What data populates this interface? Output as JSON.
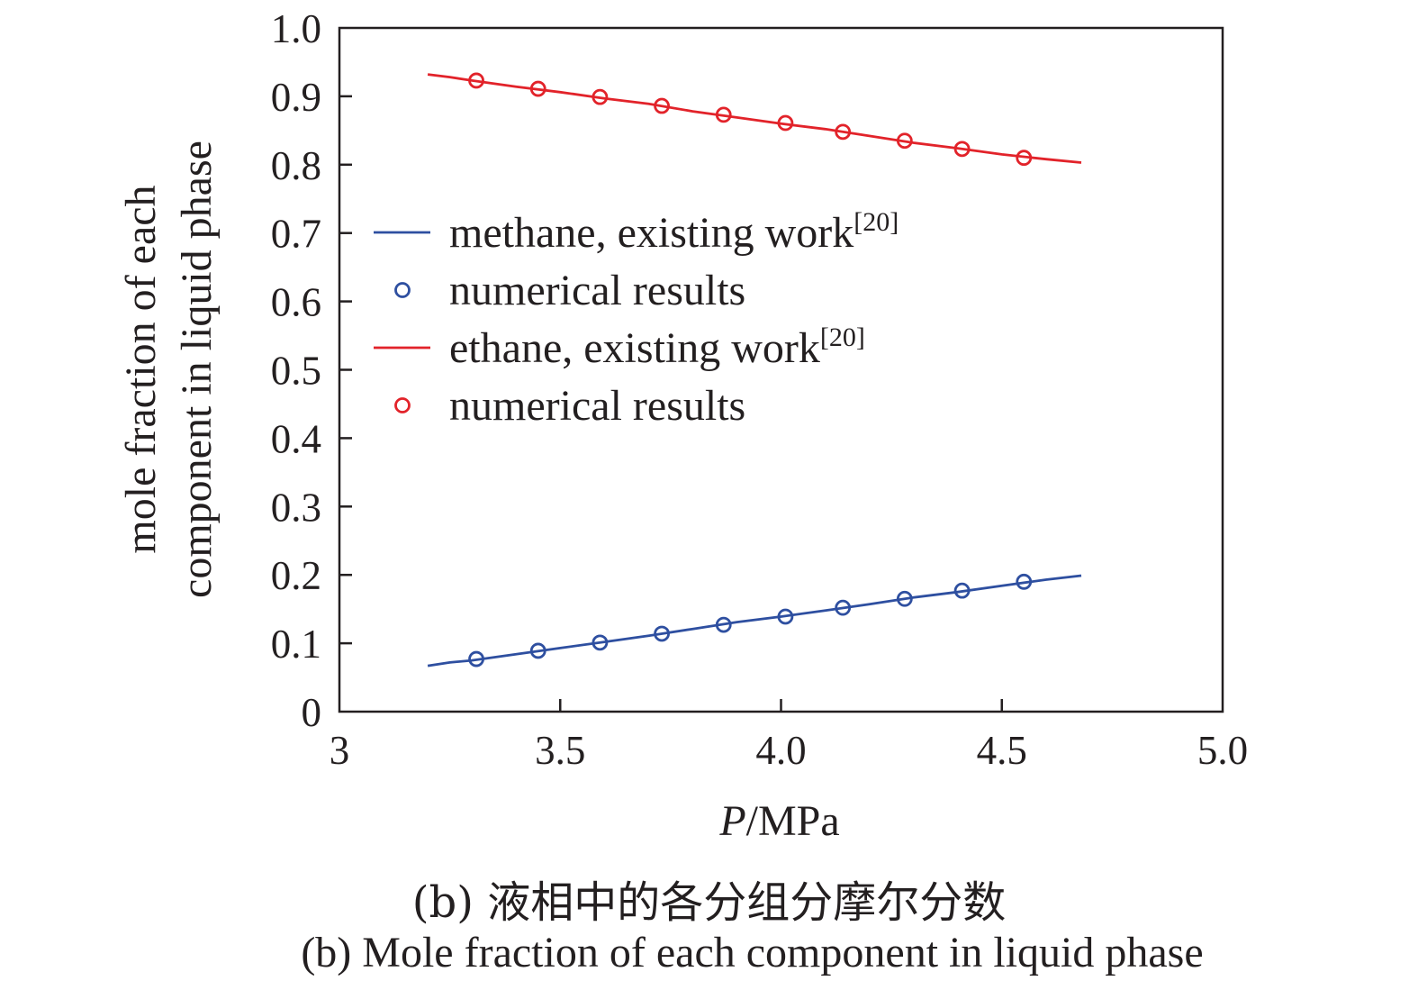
{
  "chart_data": {
    "type": "line",
    "xlabel_italic": "P",
    "xlabel_unit": "/MPa",
    "ylabel_line1": "mole fraction of each",
    "ylabel_line2": "component in liquid phase",
    "xlim": [
      3.0,
      5.0
    ],
    "ylim": [
      0.0,
      1.0
    ],
    "x_ticks": [
      {
        "value": 3.0,
        "label": "3"
      },
      {
        "value": 3.5,
        "label": "3.5"
      },
      {
        "value": 4.0,
        "label": "4.0"
      },
      {
        "value": 4.5,
        "label": "4.5"
      },
      {
        "value": 5.0,
        "label": "5.0"
      }
    ],
    "y_ticks": [
      {
        "value": 0.0,
        "label": "0"
      },
      {
        "value": 0.1,
        "label": "0.1"
      },
      {
        "value": 0.2,
        "label": "0.2"
      },
      {
        "value": 0.3,
        "label": "0.3"
      },
      {
        "value": 0.4,
        "label": "0.4"
      },
      {
        "value": 0.5,
        "label": "0.5"
      },
      {
        "value": 0.6,
        "label": "0.6"
      },
      {
        "value": 0.7,
        "label": "0.7"
      },
      {
        "value": 0.8,
        "label": "0.8"
      },
      {
        "value": 0.9,
        "label": "0.9"
      },
      {
        "value": 1.0,
        "label": "1.0"
      }
    ],
    "grid": false,
    "legend_position": "middle-left",
    "series": [
      {
        "name": "methane, existing work",
        "name_sup": "[20]",
        "kind": "line",
        "color": "#2e4fa0",
        "x": [
          3.2,
          3.25,
          3.3,
          3.4,
          3.5,
          3.6,
          3.7,
          3.8,
          3.9,
          4.0,
          4.1,
          4.2,
          4.3,
          4.4,
          4.5,
          4.6,
          4.68
        ],
        "y": [
          0.067,
          0.072,
          0.075,
          0.084,
          0.093,
          0.102,
          0.111,
          0.121,
          0.131,
          0.139,
          0.148,
          0.157,
          0.167,
          0.175,
          0.184,
          0.193,
          0.199
        ]
      },
      {
        "name": "numerical results",
        "kind": "markers",
        "color": "#2e4fa0",
        "x": [
          3.31,
          3.45,
          3.59,
          3.73,
          3.87,
          4.01,
          4.14,
          4.28,
          4.41,
          4.55
        ],
        "y": [
          0.077,
          0.089,
          0.101,
          0.114,
          0.127,
          0.139,
          0.152,
          0.165,
          0.177,
          0.19
        ]
      },
      {
        "name": "ethane, existing work",
        "name_sup": "[20]",
        "kind": "line",
        "color": "#e2232a",
        "x": [
          3.2,
          3.25,
          3.3,
          3.4,
          3.5,
          3.6,
          3.7,
          3.8,
          3.9,
          4.0,
          4.1,
          4.2,
          4.3,
          4.4,
          4.5,
          4.6,
          4.68
        ],
        "y": [
          0.932,
          0.928,
          0.923,
          0.914,
          0.906,
          0.897,
          0.889,
          0.878,
          0.869,
          0.86,
          0.852,
          0.842,
          0.832,
          0.824,
          0.815,
          0.808,
          0.803
        ]
      },
      {
        "name": "numerical results",
        "kind": "markers",
        "color": "#e2232a",
        "x": [
          3.31,
          3.45,
          3.59,
          3.73,
          3.87,
          4.01,
          4.14,
          4.28,
          4.41,
          4.55
        ],
        "y": [
          0.923,
          0.911,
          0.899,
          0.886,
          0.873,
          0.861,
          0.848,
          0.835,
          0.823,
          0.81
        ]
      }
    ]
  },
  "caption": {
    "cn": "(b) 液相中的各分组分摩尔分数",
    "en": "(b) Mole fraction of each component in liquid phase"
  }
}
